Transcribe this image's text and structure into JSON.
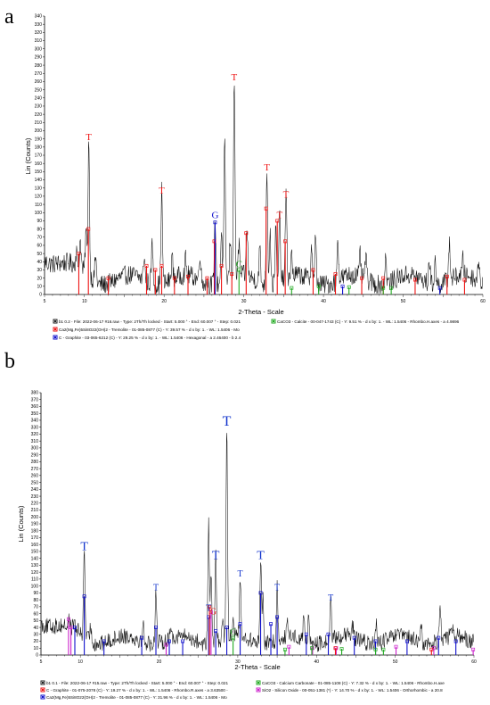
{
  "chart_data": [
    {
      "type": "line",
      "panel_label": "a",
      "xlabel": "2-Theta - Scale",
      "ylabel": "Lin (Counts)",
      "xlim": [
        5,
        60
      ],
      "ylim": [
        0,
        340
      ],
      "x_ticks": [
        5,
        10,
        20,
        30,
        40,
        50,
        60
      ],
      "y_ticks": [
        0,
        10,
        20,
        30,
        40,
        50,
        60,
        70,
        80,
        90,
        100,
        110,
        120,
        130,
        140,
        150,
        160,
        170,
        180,
        190,
        200,
        210,
        220,
        230,
        240,
        250,
        260,
        270,
        280,
        290,
        300,
        310,
        320,
        330,
        340
      ],
      "grid": false,
      "baseline": 10,
      "peaks": [
        {
          "x": 9.0,
          "y": 45
        },
        {
          "x": 9.5,
          "y": 60
        },
        {
          "x": 10.2,
          "y": 70
        },
        {
          "x": 10.55,
          "y": 185
        },
        {
          "x": 11.4,
          "y": 40
        },
        {
          "x": 17.5,
          "y": 40
        },
        {
          "x": 18.5,
          "y": 55
        },
        {
          "x": 19.7,
          "y": 120
        },
        {
          "x": 21.0,
          "y": 40
        },
        {
          "x": 22.7,
          "y": 35
        },
        {
          "x": 24.5,
          "y": 45
        },
        {
          "x": 26.4,
          "y": 90
        },
        {
          "x": 27.2,
          "y": 70
        },
        {
          "x": 27.6,
          "y": 175
        },
        {
          "x": 28.3,
          "y": 60
        },
        {
          "x": 28.8,
          "y": 258
        },
        {
          "x": 29.4,
          "y": 55
        },
        {
          "x": 30.4,
          "y": 75
        },
        {
          "x": 32.0,
          "y": 50
        },
        {
          "x": 32.9,
          "y": 148
        },
        {
          "x": 33.3,
          "y": 70
        },
        {
          "x": 34.0,
          "y": 70
        },
        {
          "x": 34.5,
          "y": 90
        },
        {
          "x": 35.3,
          "y": 115
        },
        {
          "x": 36.0,
          "y": 40
        },
        {
          "x": 38.5,
          "y": 55
        },
        {
          "x": 39.0,
          "y": 60
        },
        {
          "x": 41.8,
          "y": 65
        },
        {
          "x": 44.6,
          "y": 40
        },
        {
          "x": 45.3,
          "y": 40
        },
        {
          "x": 47.8,
          "y": 40
        },
        {
          "x": 53.3,
          "y": 35
        },
        {
          "x": 54.0,
          "y": 35
        },
        {
          "x": 55.8,
          "y": 60
        },
        {
          "x": 57.5,
          "y": 35
        },
        {
          "x": 59.5,
          "y": 35
        }
      ],
      "phase_sticks": [
        {
          "phase": "Tremolite",
          "color": "#ee1111",
          "x": [
            9.3,
            10.5,
            13.0,
            17.8,
            18.9,
            19.7,
            21.3,
            23.0,
            25.4,
            26.3,
            27.2,
            28.5,
            30.3,
            32.8,
            34.2,
            35.2,
            38.7,
            41.5,
            44.8,
            47.5,
            51.5,
            55.5,
            57.7
          ],
          "y": [
            50,
            80,
            20,
            35,
            30,
            35,
            20,
            22,
            20,
            65,
            35,
            25,
            75,
            105,
            90,
            65,
            30,
            25,
            20,
            20,
            18,
            22,
            18
          ]
        },
        {
          "phase": "Graphite",
          "color": "#1111cc",
          "x": [
            26.4,
            42.4,
            54.6
          ],
          "y": [
            88,
            10,
            8
          ]
        },
        {
          "phase": "Calcite",
          "color": "#22aa22",
          "x": [
            29.4,
            36.0,
            39.4,
            43.2,
            47.5,
            48.5
          ],
          "y": [
            30,
            8,
            10,
            9,
            8,
            8
          ]
        }
      ],
      "annotations": [
        {
          "text": "T",
          "x": 10.55,
          "y": 185,
          "color": "#ee1111"
        },
        {
          "text": "T",
          "x": 19.7,
          "y": 120,
          "color": "#ee1111"
        },
        {
          "text": "G",
          "x": 26.4,
          "y": 90,
          "color": "#1111cc"
        },
        {
          "text": "T",
          "x": 28.8,
          "y": 258,
          "color": "#ee1111"
        },
        {
          "text": "C",
          "x": 29.4,
          "y": 30,
          "color": "#22aa22"
        },
        {
          "text": "T",
          "x": 32.9,
          "y": 148,
          "color": "#ee1111"
        },
        {
          "text": "T",
          "x": 34.5,
          "y": 90,
          "color": "#ee1111"
        },
        {
          "text": "T",
          "x": 35.3,
          "y": 115,
          "color": "#ee1111"
        }
      ],
      "legend": [
        {
          "marker": "#222222",
          "text": "b1 0.2 - File: 2022-06-17 #16.raw - Type: 2Th/Th locked - Start: 5.000 ° - End: 60.007 ° - Step: 0.021"
        },
        {
          "marker": "#22aa22",
          "text": "CaCO3 - Calcite - 00-047-1743 (C) - Y: 9.51 % - d x by: 1. - WL: 1.5406 - Rhombo.H.axes - a 4.9896"
        },
        {
          "marker": "#ee1111",
          "text": "Ca2(Mg,Fe)5Si8O22(OH)2 - Tremolite - 01-085-0877 (C) - Y: 39.57 % - d x by: 1. - WL: 1.5406 - Mo"
        },
        {
          "marker": "#1111cc",
          "text": "C - Graphite - 03-065-6212 (C) - Y: 29.25 % - d x by: 1. - WL: 1.5406 - Hexagonal - a 2.46400 - b 2.4"
        }
      ]
    },
    {
      "type": "line",
      "panel_label": "b",
      "xlabel": "2-Theta - Scale",
      "ylabel": "Lin (Counts)",
      "xlim": [
        5,
        60
      ],
      "ylim": [
        0,
        380
      ],
      "x_ticks": [
        5,
        10,
        20,
        30,
        40,
        50,
        60
      ],
      "y_ticks": [
        0,
        10,
        20,
        30,
        40,
        50,
        60,
        70,
        80,
        90,
        100,
        110,
        120,
        130,
        140,
        150,
        160,
        170,
        180,
        190,
        200,
        210,
        220,
        230,
        240,
        250,
        260,
        270,
        280,
        290,
        300,
        310,
        320,
        330,
        340,
        350,
        360,
        370,
        380
      ],
      "grid": false,
      "baseline": 14,
      "peaks": [
        {
          "x": 8.6,
          "y": 45
        },
        {
          "x": 9.2,
          "y": 40
        },
        {
          "x": 10.5,
          "y": 148
        },
        {
          "x": 11.3,
          "y": 35
        },
        {
          "x": 18.0,
          "y": 35
        },
        {
          "x": 19.6,
          "y": 90
        },
        {
          "x": 21.5,
          "y": 30
        },
        {
          "x": 26.3,
          "y": 180
        },
        {
          "x": 26.6,
          "y": 110
        },
        {
          "x": 27.2,
          "y": 135
        },
        {
          "x": 28.1,
          "y": 45
        },
        {
          "x": 28.6,
          "y": 328
        },
        {
          "x": 29.4,
          "y": 50
        },
        {
          "x": 30.3,
          "y": 110
        },
        {
          "x": 32.9,
          "y": 135
        },
        {
          "x": 33.2,
          "y": 80
        },
        {
          "x": 35.0,
          "y": 90
        },
        {
          "x": 36.3,
          "y": 35
        },
        {
          "x": 38.4,
          "y": 50
        },
        {
          "x": 39.0,
          "y": 45
        },
        {
          "x": 41.8,
          "y": 75
        },
        {
          "x": 44.6,
          "y": 35
        },
        {
          "x": 47.6,
          "y": 35
        },
        {
          "x": 53.3,
          "y": 30
        },
        {
          "x": 55.7,
          "y": 70
        },
        {
          "x": 57.4,
          "y": 30
        }
      ],
      "phase_sticks": [
        {
          "phase": "Tremolite",
          "color": "#1111cc",
          "x": [
            9.3,
            10.5,
            13.0,
            17.8,
            19.6,
            21.3,
            23.0,
            26.3,
            27.2,
            28.6,
            30.3,
            32.9,
            34.2,
            35.0,
            38.7,
            41.5,
            44.8,
            47.5,
            51.5,
            55.5,
            57.7
          ],
          "y": [
            40,
            85,
            20,
            25,
            40,
            20,
            20,
            55,
            35,
            40,
            45,
            90,
            45,
            55,
            30,
            30,
            25,
            20,
            20,
            25,
            20
          ]
        },
        {
          "phase": "Silicon Oxide",
          "color": "#cc22cc",
          "x": [
            8.5,
            8.8,
            20.9,
            26.6,
            36.5,
            39.5,
            42.5,
            50.1,
            54.9,
            59.9
          ],
          "y": [
            52,
            40,
            15,
            62,
            12,
            10,
            10,
            12,
            10,
            8
          ]
        },
        {
          "phase": "Graphite",
          "color": "#ee1111",
          "x": [
            26.4,
            42.4,
            54.6
          ],
          "y": [
            70,
            10,
            8
          ]
        },
        {
          "phase": "Calcium Carbonate",
          "color": "#22aa22",
          "x": [
            29.4,
            36.0,
            39.4,
            43.2,
            47.5,
            48.5
          ],
          "y": [
            25,
            8,
            10,
            9,
            8,
            8
          ]
        }
      ],
      "annotations": [
        {
          "text": "T",
          "x": 10.5,
          "y": 148,
          "color": "#1133cc"
        },
        {
          "text": "T",
          "x": 19.6,
          "y": 90,
          "color": "#1133cc"
        },
        {
          "text": "T",
          "x": 26.3,
          "y": 60,
          "color": "#1133cc"
        },
        {
          "text": "G",
          "x": 26.9,
          "y": 55,
          "color": "#ee1111"
        },
        {
          "text": "T",
          "x": 27.2,
          "y": 135,
          "color": "#1133cc"
        },
        {
          "text": "T",
          "x": 28.6,
          "y": 328,
          "color": "#1133cc"
        },
        {
          "text": "C",
          "x": 29.4,
          "y": 25,
          "color": "#22aa22"
        },
        {
          "text": "T",
          "x": 30.3,
          "y": 110,
          "color": "#1133cc"
        },
        {
          "text": "T",
          "x": 32.9,
          "y": 135,
          "color": "#1133cc"
        },
        {
          "text": "T",
          "x": 35.0,
          "y": 90,
          "color": "#1133cc"
        },
        {
          "text": "T",
          "x": 41.8,
          "y": 75,
          "color": "#1133cc"
        }
      ],
      "legend": [
        {
          "marker": "#222222",
          "text": "b1 0.1 - File: 2022-06-17 #15.raw - Type: 2Th/Th locked - Start: 5.000 ° - End: 60.007 ° - Step: 0.021"
        },
        {
          "marker": "#22aa22",
          "text": "CaCO3 - Calcium Carbonate - 01-085-1108 (C) - Y: 7.32 % - d x by: 1. - WL: 1.5406 - Rhombo.H.axe"
        },
        {
          "marker": "#ee1111",
          "text": "C - Graphite - 01-075-2078 (C) - Y: 19.27 % - d x by: 1. - WL: 1.5406 - Rhombo.R.axes - a 3.63500 -"
        },
        {
          "marker": "#cc22cc",
          "text": "SiO2 - Silicon Oxide - 00-051-1381 (*) - Y: 14.70 % - d x by: 1. - WL: 1.5406 - Orthorhombic - a 20.8"
        },
        {
          "marker": "#1111cc",
          "text": "Ca2(Mg,Fe)5Si8O22(OH)2 - Tremolite - 01-085-0877 (C) - Y: 31.96 % - d x by: 1. - WL: 1.5406 - Mo"
        }
      ]
    }
  ]
}
